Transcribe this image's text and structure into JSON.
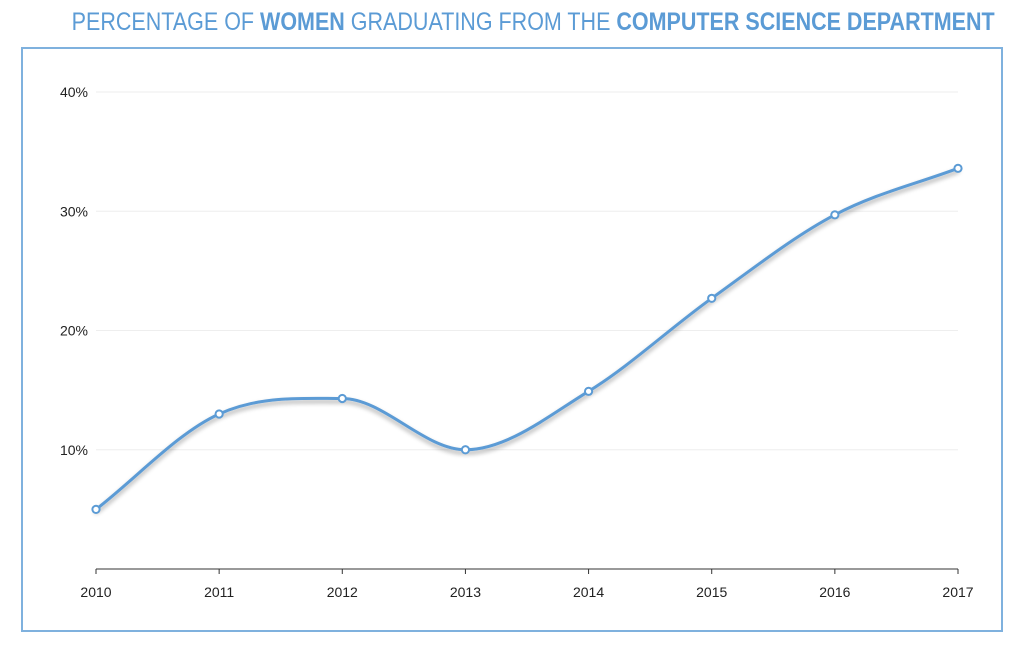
{
  "title": {
    "part1": "PERCENTAGE OF ",
    "part2": "WOMEN",
    "part3": " GRADUATING FROM THE ",
    "part4": "COMPUTER SCIENCE DEPARTMENT"
  },
  "colors": {
    "accent": "#5b9bd5",
    "frame": "#7fb1de",
    "grid": "#eeeeee"
  },
  "chart_data": {
    "type": "line",
    "x": [
      "2010",
      "2011",
      "2012",
      "2013",
      "2014",
      "2015",
      "2016",
      "2017"
    ],
    "series": [
      {
        "values": [
          5,
          13,
          14.3,
          10,
          14.9,
          22.7,
          29.7,
          33.6
        ]
      }
    ],
    "ylim": [
      0,
      40
    ],
    "yticks": [
      10,
      20,
      30,
      40
    ],
    "ytick_labels": [
      "10%",
      "20%",
      "30%",
      "40%"
    ],
    "grid": true,
    "smooth": true
  }
}
